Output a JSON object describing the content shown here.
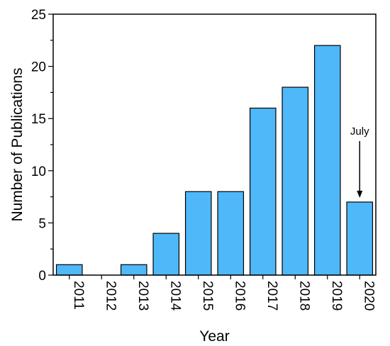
{
  "chart_data": {
    "type": "bar",
    "title": "",
    "xlabel": "Year",
    "ylabel": "Number of Publications",
    "categories": [
      "2011",
      "2012",
      "2013",
      "2014",
      "2015",
      "2016",
      "2017",
      "2018",
      "2019",
      "2020"
    ],
    "values": [
      1,
      0,
      1,
      4,
      8,
      8,
      16,
      18,
      22,
      7
    ],
    "ylim": [
      0,
      25
    ],
    "yticks": [
      "0",
      "5",
      "10",
      "15",
      "20",
      "25"
    ],
    "grid": false,
    "legend": "none",
    "bar_color": "#4FB8F9",
    "annotations": [
      {
        "text": "July",
        "category": "2020",
        "arrow": "down"
      }
    ]
  }
}
